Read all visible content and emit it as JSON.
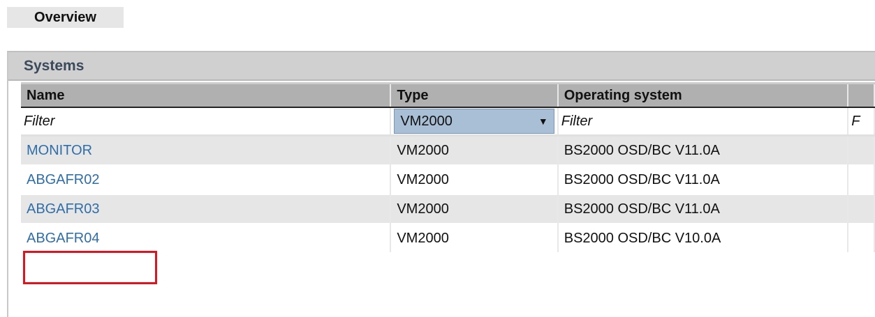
{
  "tab": {
    "label": "Overview"
  },
  "panel": {
    "title": "Systems"
  },
  "table": {
    "columns": [
      "Name",
      "Type",
      "Operating system",
      ""
    ],
    "filters": {
      "name": "Filter",
      "type": "VM2000",
      "os": "Filter",
      "extra": "F"
    },
    "rows": [
      {
        "name": "MONITOR",
        "type": "VM2000",
        "os": "BS2000 OSD/BC V11.0A"
      },
      {
        "name": "ABGAFR02",
        "type": "VM2000",
        "os": "BS2000 OSD/BC V11.0A"
      },
      {
        "name": "ABGAFR03",
        "type": "VM2000",
        "os": "BS2000 OSD/BC V11.0A"
      },
      {
        "name": "ABGAFR04",
        "type": "VM2000",
        "os": "BS2000 OSD/BC V10.0A"
      }
    ]
  },
  "highlight": {
    "row": "ABGAFR03",
    "color": "#e0141e"
  }
}
